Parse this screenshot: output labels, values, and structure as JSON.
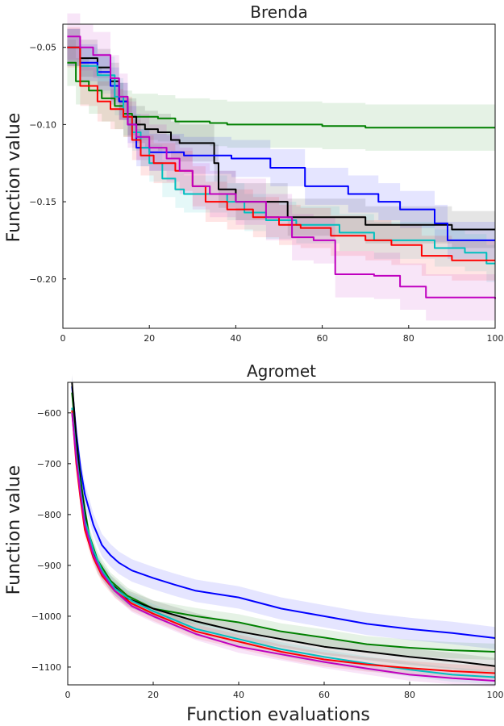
{
  "chart_data": [
    {
      "type": "line",
      "title": "Brenda",
      "ylabel": "Function value",
      "xlabel": "",
      "xlim": [
        0,
        100
      ],
      "ylim": [
        -0.232,
        -0.035
      ],
      "xticks": [
        0,
        20,
        40,
        60,
        80,
        100
      ],
      "yticks": [
        -0.05,
        -0.1,
        -0.15,
        -0.2
      ],
      "ytick_labels": [
        "−0.05",
        "−0.10",
        "−0.15",
        "−0.20"
      ],
      "xtick_labels": [
        "0",
        "20",
        "40",
        "60",
        "80",
        "100"
      ],
      "grid": false,
      "step": true,
      "series": [
        {
          "color": "#008000",
          "band": 0.015,
          "points": [
            [
              1,
              -0.06
            ],
            [
              3,
              -0.072
            ],
            [
              6,
              -0.078
            ],
            [
              9,
              -0.083
            ],
            [
              12,
              -0.088
            ],
            [
              14,
              -0.093
            ],
            [
              16,
              -0.095
            ],
            [
              22,
              -0.096
            ],
            [
              26,
              -0.098
            ],
            [
              34,
              -0.099
            ],
            [
              38,
              -0.1
            ],
            [
              60,
              -0.101
            ],
            [
              70,
              -0.102
            ],
            [
              100,
              -0.102
            ]
          ]
        },
        {
          "color": "#000000",
          "band": 0.012,
          "points": [
            [
              1,
              -0.05
            ],
            [
              4,
              -0.057
            ],
            [
              8,
              -0.063
            ],
            [
              11,
              -0.072
            ],
            [
              13,
              -0.085
            ],
            [
              15,
              -0.095
            ],
            [
              17,
              -0.1
            ],
            [
              19,
              -0.103
            ],
            [
              22,
              -0.105
            ],
            [
              25,
              -0.11
            ],
            [
              27,
              -0.112
            ],
            [
              35,
              -0.125
            ],
            [
              36,
              -0.142
            ],
            [
              40,
              -0.15
            ],
            [
              52,
              -0.16
            ],
            [
              60,
              -0.16
            ],
            [
              70,
              -0.165
            ],
            [
              90,
              -0.168
            ],
            [
              100,
              -0.168
            ]
          ]
        },
        {
          "color": "#0000ff",
          "band": 0.012,
          "points": [
            [
              1,
              -0.05
            ],
            [
              4,
              -0.06
            ],
            [
              8,
              -0.066
            ],
            [
              11,
              -0.075
            ],
            [
              13,
              -0.085
            ],
            [
              15,
              -0.1
            ],
            [
              17,
              -0.115
            ],
            [
              20,
              -0.118
            ],
            [
              28,
              -0.12
            ],
            [
              39,
              -0.122
            ],
            [
              48,
              -0.128
            ],
            [
              56,
              -0.14
            ],
            [
              66,
              -0.145
            ],
            [
              73,
              -0.15
            ],
            [
              78,
              -0.155
            ],
            [
              86,
              -0.164
            ],
            [
              89,
              -0.175
            ],
            [
              100,
              -0.175
            ]
          ]
        },
        {
          "color": "#00bfbf",
          "band": 0.012,
          "points": [
            [
              1,
              -0.05
            ],
            [
              4,
              -0.062
            ],
            [
              8,
              -0.068
            ],
            [
              12,
              -0.082
            ],
            [
              14,
              -0.095
            ],
            [
              16,
              -0.105
            ],
            [
              18,
              -0.115
            ],
            [
              20,
              -0.125
            ],
            [
              23,
              -0.135
            ],
            [
              26,
              -0.142
            ],
            [
              28,
              -0.145
            ],
            [
              38,
              -0.15
            ],
            [
              42,
              -0.157
            ],
            [
              47,
              -0.162
            ],
            [
              54,
              -0.165
            ],
            [
              64,
              -0.17
            ],
            [
              72,
              -0.175
            ],
            [
              86,
              -0.18
            ],
            [
              93,
              -0.183
            ],
            [
              98,
              -0.19
            ],
            [
              100,
              -0.19
            ]
          ]
        },
        {
          "color": "#ff0000",
          "band": 0.013,
          "points": [
            [
              1,
              -0.05
            ],
            [
              4,
              -0.075
            ],
            [
              8,
              -0.085
            ],
            [
              11,
              -0.09
            ],
            [
              14,
              -0.095
            ],
            [
              16,
              -0.11
            ],
            [
              18,
              -0.12
            ],
            [
              21,
              -0.125
            ],
            [
              26,
              -0.13
            ],
            [
              30,
              -0.14
            ],
            [
              33,
              -0.15
            ],
            [
              38,
              -0.155
            ],
            [
              44,
              -0.16
            ],
            [
              50,
              -0.165
            ],
            [
              55,
              -0.167
            ],
            [
              62,
              -0.172
            ],
            [
              70,
              -0.175
            ],
            [
              76,
              -0.178
            ],
            [
              83,
              -0.185
            ],
            [
              90,
              -0.188
            ],
            [
              100,
              -0.188
            ]
          ]
        },
        {
          "color": "#bf00bf",
          "band": 0.015,
          "points": [
            [
              1,
              -0.043
            ],
            [
              4,
              -0.05
            ],
            [
              7,
              -0.055
            ],
            [
              11,
              -0.07
            ],
            [
              13,
              -0.082
            ],
            [
              15,
              -0.1
            ],
            [
              17,
              -0.108
            ],
            [
              20,
              -0.115
            ],
            [
              24,
              -0.122
            ],
            [
              27,
              -0.13
            ],
            [
              30,
              -0.14
            ],
            [
              34,
              -0.145
            ],
            [
              40,
              -0.15
            ],
            [
              47,
              -0.16
            ],
            [
              53,
              -0.173
            ],
            [
              58,
              -0.175
            ],
            [
              63,
              -0.197
            ],
            [
              72,
              -0.198
            ],
            [
              78,
              -0.205
            ],
            [
              84,
              -0.212
            ],
            [
              100,
              -0.213
            ]
          ]
        }
      ]
    },
    {
      "type": "line",
      "title": "Agromet",
      "ylabel": "Function value",
      "xlabel": "Function evaluations",
      "xlim": [
        0,
        100
      ],
      "ylim": [
        -1135,
        -540
      ],
      "xticks": [
        0,
        20,
        40,
        60,
        80,
        100
      ],
      "yticks": [
        -600,
        -700,
        -800,
        -900,
        -1000,
        -1100
      ],
      "ytick_labels": [
        "−600",
        "−700",
        "−800",
        "−900",
        "−1000",
        "−1100"
      ],
      "xtick_labels": [
        "0",
        "20",
        "40",
        "60",
        "80",
        "100"
      ],
      "grid": false,
      "step": false,
      "series": [
        {
          "color": "#0000ff",
          "band": 22,
          "points": [
            [
              1,
              -548
            ],
            [
              2,
              -640
            ],
            [
              3,
              -710
            ],
            [
              4,
              -760
            ],
            [
              6,
              -820
            ],
            [
              8,
              -860
            ],
            [
              10,
              -880
            ],
            [
              12,
              -895
            ],
            [
              15,
              -910
            ],
            [
              20,
              -925
            ],
            [
              25,
              -938
            ],
            [
              30,
              -950
            ],
            [
              40,
              -963
            ],
            [
              50,
              -985
            ],
            [
              60,
              -1000
            ],
            [
              70,
              -1015
            ],
            [
              80,
              -1025
            ],
            [
              90,
              -1033
            ],
            [
              100,
              -1043
            ]
          ]
        },
        {
          "color": "#008000",
          "band": 16,
          "points": [
            [
              1,
              -560
            ],
            [
              2,
              -650
            ],
            [
              3,
              -730
            ],
            [
              4,
              -790
            ],
            [
              5,
              -840
            ],
            [
              7,
              -890
            ],
            [
              10,
              -930
            ],
            [
              14,
              -960
            ],
            [
              20,
              -985
            ],
            [
              30,
              -1000
            ],
            [
              40,
              -1012
            ],
            [
              50,
              -1030
            ],
            [
              60,
              -1042
            ],
            [
              70,
              -1055
            ],
            [
              80,
              -1062
            ],
            [
              90,
              -1067
            ],
            [
              100,
              -1070
            ]
          ]
        },
        {
          "color": "#000000",
          "band": 16,
          "points": [
            [
              1,
              -540
            ],
            [
              2,
              -650
            ],
            [
              3,
              -740
            ],
            [
              4,
              -800
            ],
            [
              5,
              -850
            ],
            [
              7,
              -900
            ],
            [
              10,
              -935
            ],
            [
              14,
              -965
            ],
            [
              20,
              -985
            ],
            [
              30,
              -1010
            ],
            [
              40,
              -1030
            ],
            [
              50,
              -1045
            ],
            [
              60,
              -1060
            ],
            [
              70,
              -1070
            ],
            [
              80,
              -1080
            ],
            [
              90,
              -1088
            ],
            [
              100,
              -1098
            ]
          ]
        },
        {
          "color": "#00bfbf",
          "band": 14,
          "points": [
            [
              1,
              -590
            ],
            [
              2,
              -680
            ],
            [
              3,
              -750
            ],
            [
              4,
              -810
            ],
            [
              6,
              -870
            ],
            [
              8,
              -910
            ],
            [
              11,
              -945
            ],
            [
              15,
              -970
            ],
            [
              20,
              -990
            ],
            [
              30,
              -1025
            ],
            [
              40,
              -1045
            ],
            [
              50,
              -1065
            ],
            [
              60,
              -1080
            ],
            [
              70,
              -1093
            ],
            [
              80,
              -1105
            ],
            [
              90,
              -1115
            ],
            [
              100,
              -1120
            ]
          ]
        },
        {
          "color": "#ff0000",
          "band": 14,
          "points": [
            [
              1,
              -595
            ],
            [
              2,
              -700
            ],
            [
              3,
              -770
            ],
            [
              4,
              -830
            ],
            [
              6,
              -885
            ],
            [
              8,
              -920
            ],
            [
              11,
              -950
            ],
            [
              15,
              -975
            ],
            [
              20,
              -995
            ],
            [
              30,
              -1030
            ],
            [
              40,
              -1050
            ],
            [
              50,
              -1070
            ],
            [
              60,
              -1085
            ],
            [
              70,
              -1095
            ],
            [
              80,
              -1102
            ],
            [
              90,
              -1108
            ],
            [
              100,
              -1112
            ]
          ]
        },
        {
          "color": "#bf00bf",
          "band": 12,
          "points": [
            [
              1,
              -600
            ],
            [
              2,
              -690
            ],
            [
              3,
              -760
            ],
            [
              4,
              -820
            ],
            [
              6,
              -880
            ],
            [
              8,
              -915
            ],
            [
              11,
              -950
            ],
            [
              15,
              -980
            ],
            [
              20,
              -1000
            ],
            [
              30,
              -1035
            ],
            [
              40,
              -1060
            ],
            [
              50,
              -1075
            ],
            [
              60,
              -1090
            ],
            [
              70,
              -1103
            ],
            [
              80,
              -1115
            ],
            [
              90,
              -1122
            ],
            [
              100,
              -1127
            ]
          ]
        }
      ]
    }
  ]
}
